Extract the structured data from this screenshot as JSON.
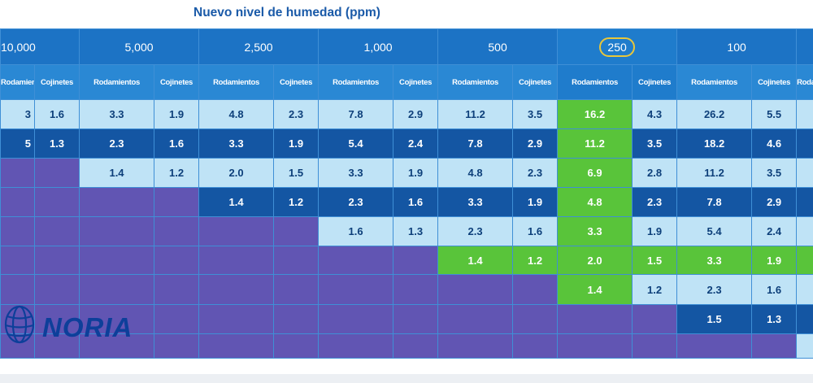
{
  "chart_data": {
    "type": "table",
    "title": "Nuevo nivel de humedad (ppm)",
    "columns": [
      "10,000",
      "5,000",
      "2,500",
      "1,000",
      "500",
      "250",
      "100"
    ],
    "highlighted_column": "250",
    "sub_columns": [
      "Rodamientos",
      "Cojinetes"
    ],
    "rows": [
      [
        [
          "3",
          "1.6"
        ],
        [
          "3.3",
          "1.9"
        ],
        [
          "4.8",
          "2.3"
        ],
        [
          "7.8",
          "2.9"
        ],
        [
          "11.2",
          "3.5"
        ],
        [
          "16.2",
          "4.3"
        ],
        [
          "26.2",
          "5.5"
        ]
      ],
      [
        [
          "5",
          "1.3"
        ],
        [
          "2.3",
          "1.6"
        ],
        [
          "3.3",
          "1.9"
        ],
        [
          "5.4",
          "2.4"
        ],
        [
          "7.8",
          "2.9"
        ],
        [
          "11.2",
          "3.5"
        ],
        [
          "18.2",
          "4.6"
        ]
      ],
      [
        [
          "",
          ""
        ],
        [
          "1.4",
          "1.2"
        ],
        [
          "2.0",
          "1.5"
        ],
        [
          "3.3",
          "1.9"
        ],
        [
          "4.8",
          "2.3"
        ],
        [
          "6.9",
          "2.8"
        ],
        [
          "11.2",
          "3.5"
        ]
      ],
      [
        [
          "",
          ""
        ],
        [
          "",
          ""
        ],
        [
          "1.4",
          "1.2"
        ],
        [
          "2.3",
          "1.6"
        ],
        [
          "3.3",
          "1.9"
        ],
        [
          "4.8",
          "2.3"
        ],
        [
          "7.8",
          "2.9"
        ]
      ],
      [
        [
          "",
          ""
        ],
        [
          "",
          ""
        ],
        [
          "",
          ""
        ],
        [
          "1.6",
          "1.3"
        ],
        [
          "2.3",
          "1.6"
        ],
        [
          "3.3",
          "1.9"
        ],
        [
          "5.4",
          "2.4"
        ]
      ],
      [
        [
          "",
          ""
        ],
        [
          "",
          ""
        ],
        [
          "",
          ""
        ],
        [
          "",
          ""
        ],
        [
          "1.4",
          "1.2"
        ],
        [
          "2.0",
          "1.5"
        ],
        [
          "3.3",
          "1.9"
        ]
      ],
      [
        [
          "",
          ""
        ],
        [
          "",
          ""
        ],
        [
          "",
          ""
        ],
        [
          "",
          ""
        ],
        [
          "",
          ""
        ],
        [
          "1.4",
          "1.2"
        ],
        [
          "2.3",
          "1.6"
        ]
      ],
      [
        [
          "",
          ""
        ],
        [
          "",
          ""
        ],
        [
          "",
          ""
        ],
        [
          "",
          ""
        ],
        [
          "",
          ""
        ],
        [
          "",
          ""
        ],
        [
          "1.5",
          "1.3"
        ]
      ],
      [
        [
          "",
          ""
        ],
        [
          "",
          ""
        ],
        [
          "",
          ""
        ],
        [
          "",
          ""
        ],
        [
          "",
          ""
        ],
        [
          "",
          ""
        ],
        [
          "",
          ""
        ]
      ]
    ],
    "row_styles": [
      "light",
      "dark",
      "light",
      "dark",
      "light",
      "green",
      "light",
      "dark",
      "light"
    ],
    "colors": {
      "header": "#1c73c5",
      "light": "#bfe3f6",
      "dark": "#1456a3",
      "green": "#59c43a",
      "purple": "#6155b3",
      "highlight_ring": "#e9c73a"
    }
  },
  "logo": {
    "text": "NORIA"
  }
}
